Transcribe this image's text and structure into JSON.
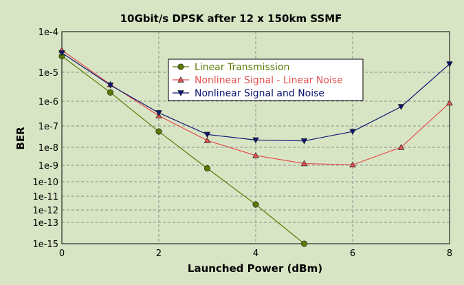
{
  "chart_data": {
    "type": "line",
    "title": "10Gbit/s DPSK after 12 x 150km SSMF",
    "xlabel": "Launched Power (dBm)",
    "ylabel": "BER",
    "xlim": [
      0,
      8
    ],
    "x_ticks": [
      0,
      2,
      4,
      6,
      8
    ],
    "y_scale": "log",
    "y_ticks": [
      "1e-4",
      "1e-5",
      "1e-6",
      "1e-7",
      "1e-8",
      "1e-9",
      "1e-10",
      "1e-11",
      "1e-12",
      "1e-13",
      "1e-15"
    ],
    "grid": true,
    "legend_position": "top-center",
    "series": [
      {
        "name": "Linear Transmission",
        "color": "#5A7A00",
        "marker": "circle",
        "x": [
          0,
          1,
          2,
          3,
          4,
          5
        ],
        "y": [
          2.5e-05,
          2e-06,
          5.5e-08,
          6.5e-10,
          2.5e-12,
          1e-15
        ]
      },
      {
        "name": "Nonlinear Signal - Linear Noise",
        "color": "#E25050",
        "marker": "triangle-up",
        "x": [
          0,
          1,
          2,
          3,
          4,
          5,
          6,
          7,
          8
        ],
        "y": [
          3.5e-05,
          3.8e-06,
          2.6e-07,
          2.1e-08,
          3.5e-09,
          1.25e-09,
          1.05e-09,
          1e-08,
          8.5e-07
        ]
      },
      {
        "name": "Nonlinear Signal and Noise",
        "color": "#0A1472",
        "marker": "triangle-down",
        "x": [
          0,
          1,
          2,
          3,
          4,
          5,
          6,
          7,
          8
        ],
        "y": [
          3e-05,
          3.6e-06,
          3.4e-07,
          4e-08,
          2.2e-08,
          2e-08,
          5.5e-08,
          6e-07,
          1.6e-05
        ]
      }
    ]
  }
}
